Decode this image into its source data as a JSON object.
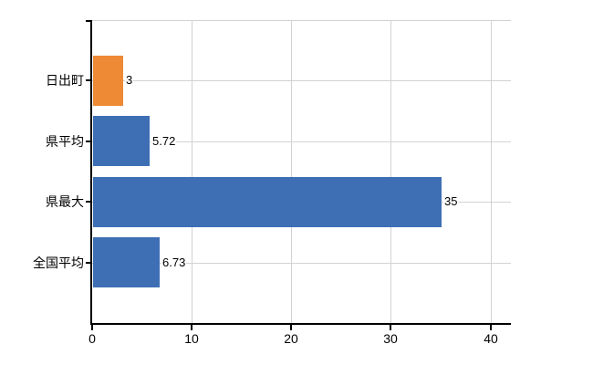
{
  "chart_data": {
    "type": "bar",
    "orientation": "horizontal",
    "title": "",
    "categories": [
      "日出町",
      "県平均",
      "県最大",
      "全国平均"
    ],
    "series": [
      {
        "name": "value",
        "values": [
          3,
          5.72,
          35,
          6.73
        ]
      }
    ],
    "value_labels": [
      "3",
      "5.72",
      "35",
      "6.73"
    ],
    "bar_colors": [
      "#EE8936",
      "#3E6FB5",
      "#3E6FB5",
      "#3E6FB5"
    ],
    "xlabel": "",
    "ylabel": "",
    "xlim": [
      0,
      42
    ],
    "x_ticks": [
      0,
      10,
      20,
      30,
      40
    ],
    "x_tick_labels": [
      "0",
      "10",
      "20",
      "30",
      "40"
    ],
    "grid": {
      "vertical_gridlines_at": [
        10,
        20,
        30,
        40
      ],
      "horizontal_gridlines": "category-centers",
      "top_border": true
    },
    "legend_visible": false,
    "colors": {
      "axis": "#000000",
      "gridline": "#d2d2d2",
      "text": "#000000",
      "background": "#ffffff"
    }
  }
}
